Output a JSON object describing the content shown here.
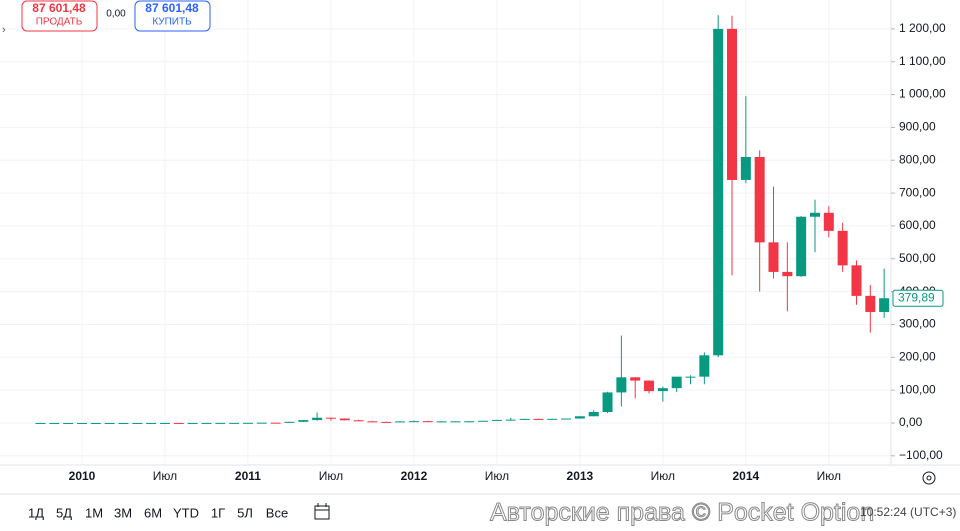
{
  "chart_data": {
    "type": "candlestick",
    "categories": [
      null,
      null,
      null,
      "2010",
      null,
      null,
      null,
      null,
      null,
      "Июл",
      null,
      null,
      null,
      null,
      null,
      "2011",
      null,
      null,
      null,
      null,
      null,
      "Июл",
      null,
      null,
      null,
      null,
      null,
      "2012",
      null,
      null,
      null,
      null,
      null,
      "Июл",
      null,
      null,
      null,
      null,
      null,
      "2013",
      null,
      null,
      null,
      null,
      null,
      "Июл",
      null,
      null,
      null,
      null,
      null,
      "2014",
      null,
      null,
      null,
      null,
      null,
      "Июл",
      null,
      null,
      null,
      null
    ],
    "open": [
      0.001,
      0.001,
      0.001,
      0.001,
      0.001,
      0.001,
      0.001,
      0.001,
      0.001,
      0.05,
      0.07,
      0.06,
      0.06,
      0.2,
      0.28,
      0.3,
      0.5,
      0.9,
      0.8,
      3.5,
      8.8,
      16,
      13.5,
      8.2,
      5,
      3.2,
      3,
      4.7,
      5.5,
      4.9,
      4.9,
      5,
      5.2,
      6.7,
      9.3,
      10.2,
      12.4,
      11,
      12.6,
      13.5,
      20.4,
      33.4,
      93,
      139,
      129,
      97,
      106,
      141,
      141,
      206,
      1200,
      740,
      810,
      550,
      460,
      447,
      628,
      640,
      585,
      480,
      387,
      338
    ],
    "high": [
      0.001,
      0.001,
      0.001,
      0.001,
      0.001,
      0.001,
      0.001,
      0.001,
      0.1,
      0.1,
      0.08,
      0.07,
      0.2,
      0.5,
      0.3,
      0.5,
      1.1,
      1,
      3.9,
      9,
      32,
      17,
      14,
      10,
      6,
      4,
      5,
      7.2,
      6.7,
      5.4,
      5.4,
      5.4,
      7,
      9.6,
      15.4,
      13,
      12.8,
      12.8,
      13.5,
      20.5,
      39,
      95,
      266,
      140,
      130,
      111,
      140,
      145,
      215,
      1242,
      1240,
      995,
      830,
      720,
      550,
      630,
      680,
      660,
      610,
      495,
      420,
      470
    ],
    "low": [
      0.001,
      0.001,
      0.001,
      0.001,
      0.001,
      0.001,
      0.001,
      0.001,
      0.001,
      0.04,
      0.06,
      0.05,
      0.05,
      0.2,
      0.2,
      0.2,
      0.5,
      0.7,
      0.6,
      3,
      7,
      7,
      7.7,
      6.4,
      4,
      2,
      2.8,
      4.6,
      4.3,
      4.7,
      4.7,
      4.8,
      5,
      6.6,
      7.2,
      9.8,
      9.9,
      10,
      11,
      13.1,
      20,
      30,
      50,
      75,
      90,
      65,
      94,
      118,
      118,
      200,
      450,
      730,
      400,
      440,
      340,
      445,
      520,
      565,
      460,
      360,
      275,
      320
    ],
    "close": [
      0.001,
      0.001,
      0.001,
      0.001,
      0.001,
      0.001,
      0.001,
      0.001,
      0.05,
      0.07,
      0.06,
      0.06,
      0.2,
      0.28,
      0.3,
      0.5,
      0.9,
      0.8,
      3.5,
      8.8,
      16,
      13.5,
      8.2,
      5,
      3.2,
      3,
      4.7,
      5.5,
      4.9,
      4.9,
      5,
      5.2,
      6.7,
      9.3,
      10.2,
      12.4,
      11,
      12.6,
      13.5,
      20.4,
      33.4,
      93,
      139,
      129,
      97,
      106,
      141,
      141,
      206,
      1200,
      740,
      810,
      550,
      460,
      447,
      628,
      640,
      585,
      480,
      387,
      338,
      379.89
    ],
    "up_color": "#089981",
    "down_color": "#f23645",
    "ylim": [
      -128,
      1288
    ],
    "yticks": [
      {
        "value": -100,
        "label": "−100,00"
      },
      {
        "value": 0,
        "label": "0,00"
      },
      {
        "value": 100,
        "label": "100,00"
      },
      {
        "value": 200,
        "label": "200,00"
      },
      {
        "value": 300,
        "label": "300,00"
      },
      {
        "value": 400,
        "label": "400,00"
      },
      {
        "value": 500,
        "label": "500,00"
      },
      {
        "value": 600,
        "label": "600,00"
      },
      {
        "value": 700,
        "label": "700,00"
      },
      {
        "value": 800,
        "label": "800,00"
      },
      {
        "value": 900,
        "label": "900,00"
      },
      {
        "value": 1000,
        "label": "1 000,00"
      },
      {
        "value": 1100,
        "label": "1 100,00"
      },
      {
        "value": 1200,
        "label": "1 200,00"
      }
    ],
    "last_price": {
      "value": 379.89,
      "label": "379,89"
    },
    "grid": true
  },
  "ui": {
    "sell_price": "87 601,48",
    "sell_label": "ПРОДАТЬ",
    "spread": "0,00",
    "buy_price": "87 601,48",
    "buy_label": "КУПИТЬ",
    "timeframes": [
      "1Д",
      "5Д",
      "1М",
      "3М",
      "6М",
      "YTD",
      "1Г",
      "5Л",
      "Все"
    ],
    "watermark": "Авторские права © Pocket Option",
    "clock": "10:52:24 (UTC+3)"
  }
}
